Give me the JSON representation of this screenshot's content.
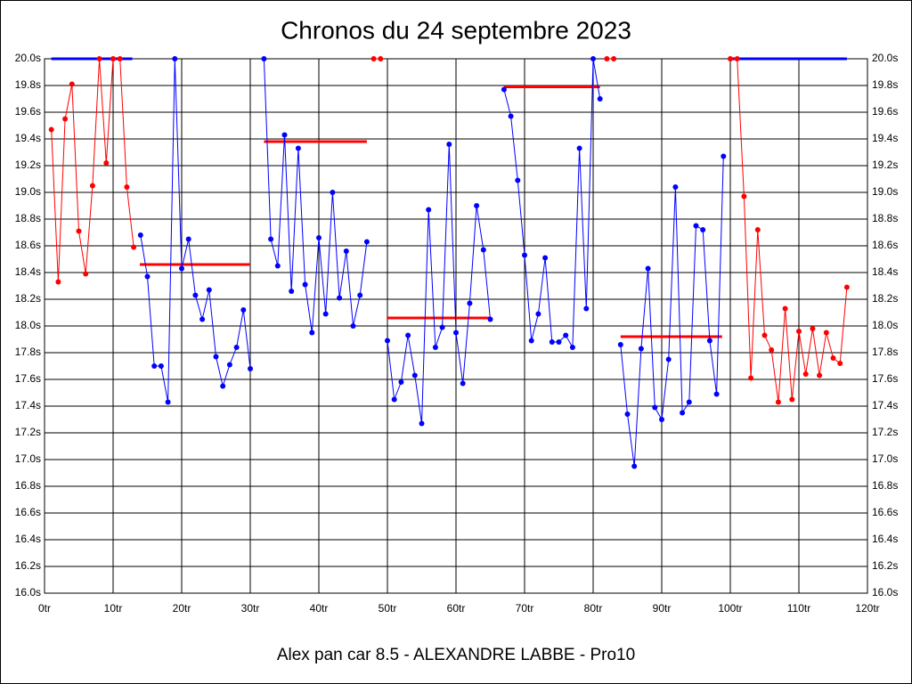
{
  "chart_data": {
    "type": "line",
    "title": "Chronos du 24 septembre 2023",
    "xlabel": "Alex pan car 8.5 - ALEXANDRE LABBE - Pro10",
    "xlim": [
      0,
      120
    ],
    "ylim": [
      16.0,
      20.0
    ],
    "grid": true,
    "xticks": [
      {
        "value": 0,
        "label": "0tr"
      },
      {
        "value": 10,
        "label": "10tr"
      },
      {
        "value": 20,
        "label": "20tr"
      },
      {
        "value": 30,
        "label": "30tr"
      },
      {
        "value": 40,
        "label": "40tr"
      },
      {
        "value": 50,
        "label": "50tr"
      },
      {
        "value": 60,
        "label": "60tr"
      },
      {
        "value": 70,
        "label": "70tr"
      },
      {
        "value": 80,
        "label": "80tr"
      },
      {
        "value": 90,
        "label": "90tr"
      },
      {
        "value": 100,
        "label": "100tr"
      },
      {
        "value": 110,
        "label": "110tr"
      },
      {
        "value": 120,
        "label": "120tr"
      }
    ],
    "yticks": [
      {
        "value": 16.0,
        "label": "16.0s"
      },
      {
        "value": 16.2,
        "label": "16.2s"
      },
      {
        "value": 16.4,
        "label": "16.4s"
      },
      {
        "value": 16.6,
        "label": "16.6s"
      },
      {
        "value": 16.8,
        "label": "16.8s"
      },
      {
        "value": 17.0,
        "label": "17.0s"
      },
      {
        "value": 17.2,
        "label": "17.2s"
      },
      {
        "value": 17.4,
        "label": "17.4s"
      },
      {
        "value": 17.6,
        "label": "17.6s"
      },
      {
        "value": 17.8,
        "label": "17.8s"
      },
      {
        "value": 18.0,
        "label": "18.0s"
      },
      {
        "value": 18.2,
        "label": "18.2s"
      },
      {
        "value": 18.4,
        "label": "18.4s"
      },
      {
        "value": 18.6,
        "label": "18.6s"
      },
      {
        "value": 18.8,
        "label": "18.8s"
      },
      {
        "value": 19.0,
        "label": "19.0s"
      },
      {
        "value": 19.2,
        "label": "19.2s"
      },
      {
        "value": 19.4,
        "label": "19.4s"
      },
      {
        "value": 19.6,
        "label": "19.6s"
      },
      {
        "value": 19.8,
        "label": "19.8s"
      },
      {
        "value": 20.0,
        "label": "20.0s"
      }
    ],
    "x": [
      1,
      2,
      3,
      4,
      5,
      6,
      7,
      8,
      9,
      10,
      11,
      12,
      13,
      14,
      15,
      16,
      17,
      18,
      19,
      20,
      21,
      22,
      23,
      24,
      25,
      26,
      27,
      28,
      29,
      30,
      31,
      32,
      33,
      34,
      35,
      36,
      37,
      38,
      39,
      40,
      41,
      42,
      43,
      44,
      45,
      46,
      47,
      48,
      49,
      50,
      51,
      52,
      53,
      54,
      55,
      56,
      57,
      58,
      59,
      60,
      61,
      62,
      63,
      64,
      65,
      66,
      67,
      68,
      69,
      70,
      71,
      72,
      73,
      74,
      75,
      76,
      77,
      78,
      79,
      80,
      81,
      82,
      83,
      84,
      85,
      86,
      87,
      88,
      89,
      90,
      91,
      92,
      93,
      94,
      95,
      96,
      97,
      98,
      99,
      100,
      101,
      102,
      103,
      104,
      105,
      106,
      107,
      108,
      109,
      110,
      111,
      112,
      113,
      114,
      115,
      116,
      117
    ],
    "series": [
      {
        "color": "#ff0000",
        "values": [
          19.47,
          18.33,
          19.55,
          19.81,
          18.71,
          18.39,
          19.05,
          20.0,
          19.22,
          20.0,
          20.0,
          19.04,
          18.59,
          null,
          null,
          null,
          null,
          null,
          null,
          null,
          null,
          null,
          null,
          null,
          null,
          null,
          null,
          null,
          null,
          null,
          null,
          null,
          null,
          null,
          null,
          null,
          null,
          null,
          null,
          null,
          null,
          null,
          null,
          null,
          null,
          null,
          null,
          20.0,
          20.0,
          null,
          null,
          null,
          null,
          null,
          null,
          null,
          null,
          null,
          null,
          null,
          null,
          null,
          null,
          null,
          null,
          null,
          null,
          null,
          null,
          null,
          null,
          null,
          null,
          null,
          null,
          null,
          null,
          null,
          null,
          null,
          null,
          20.0,
          20.0,
          null,
          null,
          null,
          null,
          null,
          null,
          null,
          null,
          null,
          null,
          null,
          null,
          null,
          null,
          null,
          null,
          20.0,
          20.0,
          18.97,
          17.61,
          18.72,
          17.93,
          17.82,
          17.43,
          18.13,
          17.45,
          17.96,
          17.64,
          17.98,
          17.63,
          17.95,
          17.76,
          17.72,
          18.29
        ]
      },
      {
        "color": "#0000ff",
        "values": [
          null,
          null,
          null,
          null,
          null,
          null,
          null,
          null,
          null,
          null,
          null,
          null,
          null,
          18.68,
          18.37,
          17.7,
          17.7,
          17.43,
          20.0,
          18.43,
          18.65,
          18.23,
          18.05,
          18.27,
          17.77,
          17.55,
          17.71,
          17.84,
          18.12,
          17.68,
          null,
          20.0,
          18.65,
          18.45,
          19.43,
          18.26,
          19.33,
          18.31,
          17.95,
          18.66,
          18.09,
          19.0,
          18.21,
          18.56,
          18.0,
          18.23,
          18.63,
          null,
          null,
          17.89,
          17.45,
          17.58,
          17.93,
          17.63,
          17.27,
          18.87,
          17.84,
          17.99,
          19.36,
          17.95,
          17.57,
          18.17,
          18.9,
          18.57,
          18.05,
          null,
          19.77,
          19.57,
          19.09,
          18.53,
          17.89,
          18.09,
          18.51,
          17.88,
          17.88,
          17.93,
          17.84,
          19.33,
          18.13,
          20.0,
          19.7,
          null,
          null,
          17.86,
          17.34,
          16.95,
          17.83,
          18.43,
          17.39,
          17.3,
          17.75,
          19.04,
          17.35,
          17.43,
          18.75,
          18.72,
          17.89,
          17.49,
          19.27,
          null,
          null,
          null,
          null,
          null,
          null,
          null,
          null,
          null,
          null,
          null,
          null,
          null,
          null,
          null,
          null,
          null,
          null
        ]
      }
    ],
    "reference_lines": [
      {
        "x0": 1,
        "x1": 12.8,
        "y": 20.0,
        "color": "#0000ff"
      },
      {
        "x0": 100,
        "x1": 117,
        "y": 20.0,
        "color": "#0000ff"
      },
      {
        "x0": 13.9,
        "x1": 29.9,
        "y": 18.46,
        "color": "#ff0000"
      },
      {
        "x0": 32,
        "x1": 47,
        "y": 19.38,
        "color": "#ff0000"
      },
      {
        "x0": 49.9,
        "x1": 65,
        "y": 18.06,
        "color": "#ff0000"
      },
      {
        "x0": 67,
        "x1": 81,
        "y": 19.79,
        "color": "#ff0000"
      },
      {
        "x0": 84,
        "x1": 98.8,
        "y": 17.92,
        "color": "#ff0000"
      }
    ]
  }
}
